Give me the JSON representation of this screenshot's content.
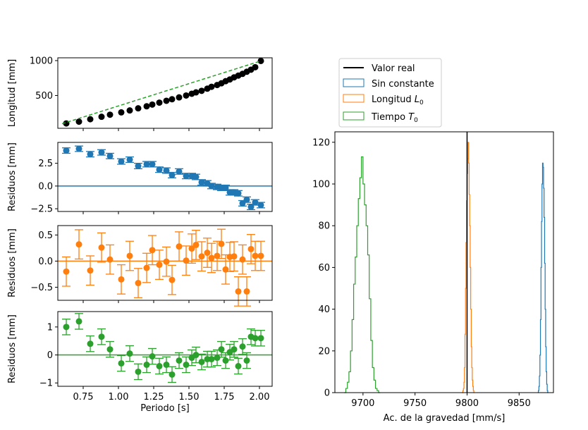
{
  "chart_data": [
    {
      "type": "scatter",
      "panel": "longitud",
      "title": "",
      "ylabel": "Longitud [mm]",
      "xlim": [
        0.57,
        2.09
      ],
      "ylim": [
        30,
        1040
      ],
      "yticks": [
        500,
        1000
      ],
      "series": [
        {
          "color": "#000000",
          "marker": "circle",
          "x": [
            0.63,
            0.72,
            0.8,
            0.88,
            0.94,
            1.02,
            1.08,
            1.14,
            1.2,
            1.24,
            1.29,
            1.34,
            1.38,
            1.43,
            1.48,
            1.52,
            1.55,
            1.59,
            1.63,
            1.66,
            1.7,
            1.73,
            1.76,
            1.79,
            1.82,
            1.85,
            1.88,
            1.91,
            1.94,
            1.97,
            2.01
          ],
          "y": [
            100,
            125,
            160,
            195,
            225,
            258,
            286,
            316,
            345,
            370,
            398,
            424,
            446,
            473,
            500,
            525,
            545,
            567,
            598,
            625,
            650,
            675,
            705,
            730,
            760,
            785,
            810,
            840,
            870,
            905,
            995
          ]
        },
        {
          "color": "#2ca02c",
          "marker": "dashed-fit",
          "x": [
            0.6,
            2.01
          ],
          "y": [
            95,
            995
          ]
        }
      ]
    },
    {
      "type": "scatter",
      "panel": "sin-constante",
      "ylabel": "Residuos [mm]",
      "xlim": [
        0.57,
        2.09
      ],
      "ylim": [
        -2.8,
        4.8
      ],
      "yticks": [
        -2.5,
        0.0,
        2.5
      ],
      "ytick_labels": [
        "−2.5",
        "0.0",
        "2.5"
      ],
      "hline": 0,
      "series": [
        {
          "color": "#1f77b4",
          "marker": "errorbar",
          "x": [
            0.63,
            0.72,
            0.8,
            0.88,
            0.94,
            1.02,
            1.08,
            1.14,
            1.2,
            1.24,
            1.29,
            1.34,
            1.38,
            1.43,
            1.48,
            1.52,
            1.55,
            1.59,
            1.63,
            1.66,
            1.7,
            1.73,
            1.76,
            1.79,
            1.82,
            1.85,
            1.88,
            1.91,
            1.94,
            1.97,
            2.01
          ],
          "y": [
            3.9,
            4.1,
            3.5,
            3.7,
            3.3,
            2.7,
            2.9,
            2.2,
            2.4,
            2.4,
            1.8,
            1.7,
            1.2,
            1.6,
            1.1,
            1.1,
            1.0,
            0.4,
            0.3,
            0.0,
            -0.1,
            -0.2,
            -0.2,
            -0.7,
            -0.7,
            -0.8,
            -1.9,
            -1.5,
            -2.3,
            -1.8,
            -2.1
          ],
          "err": 0.3
        }
      ]
    },
    {
      "type": "scatter",
      "panel": "longitud-L0",
      "ylabel": "Residuos [mm]",
      "xlim": [
        0.57,
        2.09
      ],
      "ylim": [
        -0.75,
        0.68
      ],
      "yticks": [
        -0.5,
        0.0,
        0.5
      ],
      "ytick_labels": [
        "−0.5",
        "0.0",
        "0.5"
      ],
      "hline": 0,
      "series": [
        {
          "color": "#ff7f0e",
          "marker": "errorbar",
          "x": [
            0.63,
            0.72,
            0.8,
            0.88,
            0.94,
            1.02,
            1.08,
            1.14,
            1.2,
            1.24,
            1.29,
            1.34,
            1.38,
            1.43,
            1.48,
            1.52,
            1.55,
            1.59,
            1.63,
            1.66,
            1.7,
            1.73,
            1.76,
            1.79,
            1.82,
            1.85,
            1.88,
            1.91,
            1.94,
            1.97,
            2.01
          ],
          "y": [
            -0.2,
            0.32,
            -0.18,
            0.26,
            0.03,
            -0.35,
            0.1,
            -0.42,
            -0.13,
            0.21,
            -0.07,
            -0.01,
            -0.36,
            0.28,
            0.01,
            0.24,
            0.31,
            0.09,
            0.16,
            0.06,
            0.1,
            0.33,
            -0.16,
            0.08,
            0.09,
            -0.58,
            0.03,
            -0.58,
            0.23,
            0.1,
            0.1
          ],
          "err": 0.28
        }
      ]
    },
    {
      "type": "scatter",
      "panel": "tiempo-T0",
      "ylabel": "Residuos [mm]",
      "xlabel": "Periodo [s]",
      "xlim": [
        0.57,
        2.09
      ],
      "ylim": [
        -1.12,
        1.55
      ],
      "yticks": [
        -1,
        0,
        1
      ],
      "ytick_labels": [
        "−1",
        "0",
        "1"
      ],
      "xticks": [
        0.75,
        1.0,
        1.25,
        1.5,
        1.75,
        2.0
      ],
      "xtick_labels": [
        "0.75",
        "1.00",
        "1.25",
        "1.50",
        "1.75",
        "2.00"
      ],
      "hline": 0,
      "series": [
        {
          "color": "#2ca02c",
          "marker": "errorbar",
          "x": [
            0.63,
            0.72,
            0.8,
            0.88,
            0.94,
            1.02,
            1.08,
            1.14,
            1.2,
            1.24,
            1.29,
            1.34,
            1.38,
            1.43,
            1.48,
            1.52,
            1.55,
            1.59,
            1.63,
            1.66,
            1.7,
            1.73,
            1.76,
            1.79,
            1.82,
            1.85,
            1.88,
            1.91,
            1.94,
            1.97,
            2.01
          ],
          "y": [
            1.0,
            1.2,
            0.4,
            0.65,
            0.2,
            -0.3,
            0.05,
            -0.6,
            -0.35,
            -0.05,
            -0.4,
            -0.35,
            -0.7,
            -0.2,
            -0.35,
            -0.1,
            0.0,
            -0.25,
            -0.15,
            -0.15,
            -0.1,
            0.2,
            -0.2,
            0.1,
            0.2,
            -0.4,
            0.3,
            -0.2,
            0.65,
            0.6,
            0.6
          ],
          "err": 0.28
        }
      ]
    },
    {
      "type": "histogram",
      "panel": "gravedad",
      "xlabel": "Ac. de la gravedad [mm/s]",
      "ylabel": "",
      "xlim": [
        9673,
        9883
      ],
      "ylim": [
        0,
        125
      ],
      "xticks": [
        9700,
        9750,
        9800,
        9850
      ],
      "yticks": [
        0,
        20,
        40,
        60,
        80,
        100,
        120
      ],
      "reference_line": {
        "x": 9800,
        "label": "Valor real",
        "color": "#000000",
        "ymax": 125
      },
      "legend_position": "top-left, outside",
      "legend": [
        {
          "label": "Valor real",
          "kind": "line",
          "color": "#000000"
        },
        {
          "label": "Sin constante",
          "kind": "box",
          "color": "#1f77b4"
        },
        {
          "label_main": "Longitud ",
          "label_sym": "L",
          "label_sub": "0",
          "kind": "box",
          "color": "#ff7f0e"
        },
        {
          "label_main": "Tiempo ",
          "label_sym": "T",
          "label_sub": "0",
          "kind": "box",
          "color": "#2ca02c"
        }
      ],
      "histograms": [
        {
          "name": "Tiempo T0",
          "color": "#2ca02c",
          "start": 9682,
          "bin": 1.5,
          "counts": [
            0,
            2,
            5,
            10,
            20,
            35,
            52,
            65,
            80,
            93,
            103,
            113,
            100,
            90,
            80,
            66,
            45,
            25,
            12,
            6,
            2,
            1,
            0
          ]
        },
        {
          "name": "Longitud L0",
          "color": "#ff7f0e",
          "start": 9795,
          "bin": 0.5,
          "counts": [
            0,
            0,
            1,
            2,
            5,
            12,
            28,
            50,
            72,
            92,
            105,
            112,
            120,
            110,
            95,
            80,
            60,
            40,
            22,
            12,
            6,
            3,
            1,
            0
          ]
        },
        {
          "name": "Sin constante",
          "color": "#1f77b4",
          "start": 9868,
          "bin": 0.5,
          "counts": [
            0,
            1,
            3,
            8,
            18,
            35,
            60,
            82,
            100,
            110,
            108,
            98,
            84,
            62,
            40,
            22,
            10,
            4,
            1,
            0
          ]
        }
      ]
    }
  ]
}
